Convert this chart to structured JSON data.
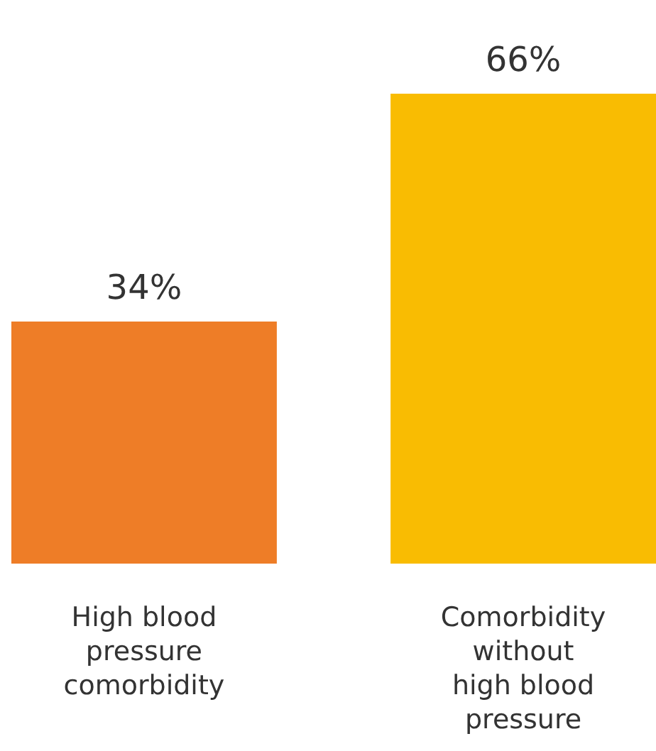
{
  "chart_data": {
    "type": "bar",
    "categories": [
      "High blood pressure comorbidity",
      "Comorbidity without high blood pressure"
    ],
    "values": [
      34,
      66
    ],
    "colors": [
      "#ee7d27",
      "#f9bc02"
    ],
    "value_labels": [
      "34%",
      "66%"
    ]
  }
}
